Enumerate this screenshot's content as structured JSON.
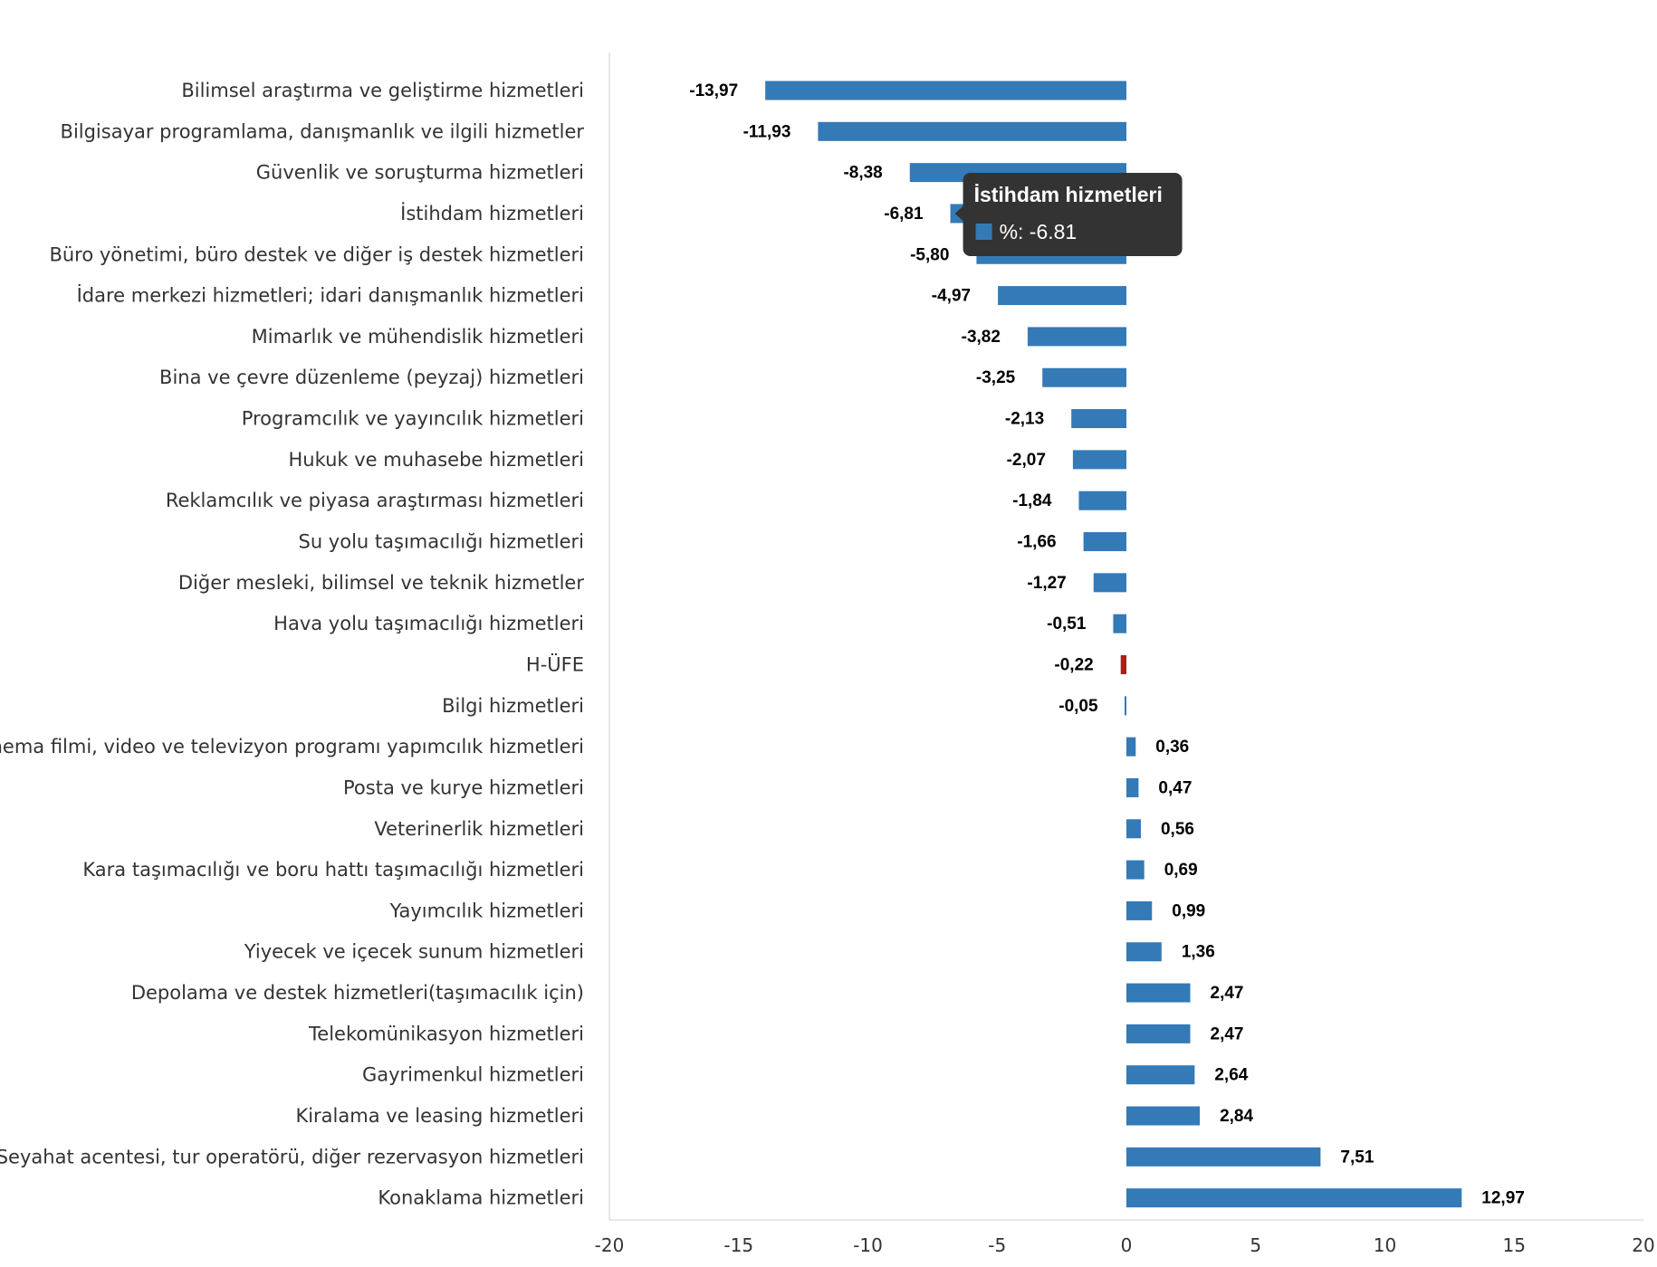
{
  "chart_data": {
    "type": "bar",
    "orientation": "horizontal",
    "categories": [
      "Bilimsel araştırma ve geliştirme hizmetleri",
      "Bilgisayar programlama, danışmanlık ve ilgili hizmetler",
      "Güvenlik ve soruşturma hizmetleri",
      "İstihdam hizmetleri",
      "Büro yönetimi, büro destek ve diğer iş destek hizmetleri",
      "İdare merkezi hizmetleri; idari danışmanlık hizmetleri",
      "Mimarlık ve mühendislik hizmetleri",
      "Bina ve çevre düzenleme (peyzaj) hizmetleri",
      "Programcılık ve yayıncılık hizmetleri",
      "Hukuk ve muhasebe hizmetleri",
      "Reklamcılık ve piyasa araştırması hizmetleri",
      "Su yolu taşımacılığı hizmetleri",
      "Diğer mesleki, bilimsel ve teknik hizmetler",
      "Hava yolu taşımacılığı hizmetleri",
      "H-ÜFE",
      "Bilgi hizmetleri",
      "Sinema filmi, video ve televizyon programı yapımcılık hizmetleri",
      "Posta ve kurye hizmetleri",
      "Veterinerlik hizmetleri",
      "Kara taşımacılığı ve boru hattı taşımacılığı hizmetleri",
      "Yayımcılık hizmetleri",
      "Yiyecek ve içecek sunum hizmetleri",
      "Depolama ve destek hizmetleri(taşımacılık için)",
      "Telekomünikasyon hizmetleri",
      "Gayrimenkul hizmetleri",
      "Kiralama ve leasing hizmetleri",
      "Seyahat acentesi, tur operatörü, diğer rezervasyon hizmetleri",
      "Konaklama hizmetleri"
    ],
    "values": [
      -13.97,
      -11.93,
      -8.38,
      -6.81,
      -5.8,
      -4.97,
      -3.82,
      -3.25,
      -2.13,
      -2.07,
      -1.84,
      -1.66,
      -1.27,
      -0.51,
      -0.22,
      -0.05,
      0.36,
      0.47,
      0.56,
      0.69,
      0.99,
      1.36,
      2.47,
      2.47,
      2.64,
      2.84,
      7.51,
      12.97
    ],
    "value_labels": [
      "-13,97",
      "-11,93",
      "-8,38",
      "-6,81",
      "-5,80",
      "-4,97",
      "-3,82",
      "-3,25",
      "-2,13",
      "-2,07",
      "-1,84",
      "-1,66",
      "-1,27",
      "-0,51",
      "-0,22",
      "-0,05",
      "0,36",
      "0,47",
      "0,56",
      "0,69",
      "0,99",
      "1,36",
      "2,47",
      "2,47",
      "2,64",
      "2,84",
      "7,51",
      "12,97"
    ],
    "xlim": [
      -20,
      20
    ],
    "xticks": [
      -20,
      -15,
      -10,
      -5,
      0,
      5,
      10,
      15,
      20
    ],
    "grid": false,
    "title": "",
    "xlabel": "",
    "ylabel": "",
    "colors": {
      "bar": "#337ab7",
      "highlight": "#b31b1b"
    },
    "highlight_category": "H-ÜFE",
    "tooltip": {
      "category": "İstihdam hizmetleri",
      "title": "İstihdam hizmetleri",
      "value_text": "%: -6.81"
    }
  }
}
